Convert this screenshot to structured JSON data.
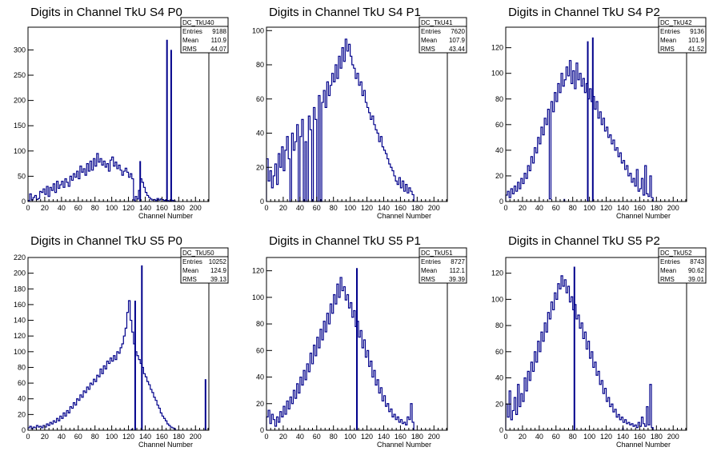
{
  "colors": {
    "histogram": "#00008b",
    "axis": "#000000",
    "background": "#ffffff"
  },
  "chart_data": [
    {
      "type": "bar",
      "title": "Digits in Channel TkU S4 P0",
      "xlabel": "Channel Number",
      "ylabel": "",
      "xlim": [
        0,
        216
      ],
      "ylim": [
        0,
        345
      ],
      "x_ticks": [
        0,
        20,
        40,
        60,
        80,
        100,
        120,
        140,
        160,
        180,
        200
      ],
      "y_ticks": [
        0,
        50,
        100,
        150,
        200,
        250,
        300
      ],
      "stats": {
        "name": "DC_TkU40",
        "entries_label": "Entries",
        "entries": "9188",
        "mean_label": "Mean",
        "mean": "110.9",
        "rms_label": "RMS",
        "rms": "44.07"
      },
      "bin_width": 2,
      "values": [
        2,
        15,
        3,
        8,
        12,
        4,
        6,
        20,
        18,
        25,
        14,
        30,
        10,
        28,
        22,
        35,
        18,
        40,
        26,
        33,
        40,
        28,
        45,
        38,
        30,
        50,
        42,
        55,
        48,
        60,
        45,
        70,
        58,
        65,
        52,
        75,
        60,
        80,
        62,
        85,
        70,
        95,
        78,
        85,
        72,
        80,
        68,
        75,
        60,
        82,
        88,
        70,
        78,
        65,
        72,
        62,
        52,
        60,
        66,
        58,
        48,
        55,
        45,
        3,
        10,
        5,
        22,
        45,
        38,
        28,
        18,
        12,
        8,
        5,
        3,
        4,
        2,
        6,
        3,
        5,
        4,
        2,
        3,
        2,
        1,
        3,
        2,
        1
      ],
      "spikes": [
        [
          128,
          2
        ],
        [
          134,
          80
        ],
        [
          166,
          320
        ],
        [
          171,
          300
        ]
      ]
    },
    {
      "type": "bar",
      "title": "Digits in Channel TkU S4 P1",
      "xlabel": "Channel Number",
      "ylabel": "",
      "xlim": [
        0,
        216
      ],
      "ylim": [
        0,
        102
      ],
      "x_ticks": [
        0,
        20,
        40,
        60,
        80,
        100,
        120,
        140,
        160,
        180,
        200
      ],
      "y_ticks": [
        0,
        20,
        40,
        60,
        80,
        100
      ],
      "stats": {
        "name": "DC_TkU41",
        "entries_label": "Entries",
        "entries": "7620",
        "mean_label": "Mean",
        "mean": "107.9",
        "rms_label": "RMS",
        "rms": "43.44"
      },
      "bin_width": 2,
      "values": [
        25,
        12,
        18,
        8,
        15,
        22,
        10,
        28,
        20,
        32,
        18,
        30,
        38,
        25,
        0,
        40,
        30,
        35,
        45,
        0,
        38,
        48,
        0,
        35,
        0,
        50,
        42,
        0,
        55,
        48,
        0,
        62,
        0,
        58,
        65,
        55,
        70,
        62,
        68,
        75,
        70,
        80,
        72,
        85,
        78,
        90,
        82,
        95,
        88,
        92,
        85,
        80,
        78,
        72,
        75,
        68,
        70,
        62,
        65,
        58,
        55,
        52,
        48,
        50,
        45,
        42,
        40,
        35,
        38,
        32,
        30,
        28,
        25,
        22,
        20,
        18,
        15,
        12,
        10,
        14,
        8,
        12,
        6,
        10,
        5,
        8,
        6,
        4
      ],
      "spikes": [
        [
          72,
          0
        ],
        [
          58,
          0
        ]
      ]
    },
    {
      "type": "bar",
      "title": "Digits in Channel TkU S4 P2",
      "xlabel": "Channel Number",
      "ylabel": "",
      "xlim": [
        0,
        216
      ],
      "ylim": [
        0,
        136
      ],
      "x_ticks": [
        0,
        20,
        40,
        60,
        80,
        100,
        120,
        140,
        160,
        180,
        200
      ],
      "y_ticks": [
        0,
        20,
        40,
        60,
        80,
        100,
        120
      ],
      "stats": {
        "name": "DC_TkU42",
        "entries_label": "Entries",
        "entries": "9136",
        "mean_label": "Mean",
        "mean": "101.9",
        "rms_label": "RMS",
        "rms": "41.52"
      },
      "bin_width": 2,
      "values": [
        5,
        8,
        3,
        10,
        6,
        12,
        8,
        15,
        10,
        18,
        14,
        22,
        18,
        28,
        24,
        35,
        30,
        42,
        38,
        50,
        45,
        58,
        52,
        65,
        60,
        72,
        2,
        78,
        70,
        85,
        78,
        92,
        85,
        100,
        90,
        95,
        105,
        98,
        110,
        92,
        102,
        88,
        108,
        95,
        100,
        90,
        96,
        85,
        92,
        80,
        88,
        78,
        82,
        72,
        78,
        65,
        70,
        60,
        65,
        55,
        58,
        50,
        52,
        45,
        48,
        40,
        42,
        35,
        38,
        30,
        32,
        25,
        28,
        20,
        22,
        15,
        18,
        12,
        25,
        8,
        10,
        18,
        5,
        28,
        6,
        4,
        20,
        3
      ],
      "spikes": [
        [
          70,
          2
        ],
        [
          104,
          128
        ],
        [
          98,
          125
        ]
      ]
    },
    {
      "type": "bar",
      "title": "Digits in Channel TkU S5 P0",
      "xlabel": "Channel Number",
      "ylabel": "",
      "xlim": [
        0,
        216
      ],
      "ylim": [
        0,
        220
      ],
      "x_ticks": [
        0,
        20,
        40,
        60,
        80,
        100,
        120,
        140,
        160,
        180,
        200
      ],
      "y_ticks": [
        0,
        20,
        40,
        60,
        80,
        100,
        120,
        140,
        160,
        180,
        200,
        220
      ],
      "stats": {
        "name": "DC_TkU50",
        "entries_label": "Entries",
        "entries": "10252",
        "mean_label": "Mean",
        "mean": "124.9",
        "rms_label": "RMS",
        "rms": "39.13"
      },
      "bin_width": 2,
      "values": [
        3,
        5,
        2,
        4,
        3,
        6,
        4,
        5,
        3,
        6,
        4,
        8,
        6,
        10,
        8,
        12,
        10,
        15,
        12,
        18,
        15,
        22,
        18,
        25,
        22,
        30,
        28,
        35,
        32,
        40,
        38,
        45,
        42,
        50,
        48,
        55,
        52,
        60,
        58,
        65,
        62,
        70,
        68,
        78,
        72,
        82,
        78,
        88,
        85,
        92,
        88,
        95,
        90,
        100,
        98,
        105,
        110,
        120,
        130,
        150,
        165,
        140,
        125,
        110,
        100,
        95,
        90,
        85,
        80,
        72,
        68,
        62,
        58,
        52,
        48,
        42,
        38,
        32,
        28,
        22,
        18,
        15,
        12,
        8,
        6,
        4,
        3,
        2
      ],
      "spikes": [
        [
          124,
          2
        ],
        [
          136,
          210
        ],
        [
          128,
          165
        ],
        [
          212,
          65
        ]
      ]
    },
    {
      "type": "bar",
      "title": "Digits in Channel TkU S5 P1",
      "xlabel": "Channel Number",
      "ylabel": "",
      "xlim": [
        0,
        216
      ],
      "ylim": [
        0,
        130
      ],
      "x_ticks": [
        0,
        20,
        40,
        60,
        80,
        100,
        120,
        140,
        160,
        180,
        200
      ],
      "y_ticks": [
        0,
        20,
        40,
        60,
        80,
        100,
        120
      ],
      "stats": {
        "name": "DC_TkU51",
        "entries_label": "Entries",
        "entries": "8727",
        "mean_label": "Mean",
        "mean": "112.1",
        "rms_label": "RMS",
        "rms": "39.39"
      },
      "bin_width": 2,
      "values": [
        10,
        15,
        5,
        12,
        8,
        3,
        10,
        6,
        14,
        10,
        18,
        12,
        22,
        16,
        25,
        20,
        30,
        24,
        35,
        28,
        40,
        34,
        45,
        38,
        50,
        44,
        58,
        50,
        64,
        56,
        70,
        62,
        76,
        68,
        82,
        74,
        88,
        80,
        95,
        88,
        102,
        95,
        110,
        100,
        115,
        105,
        108,
        98,
        102,
        92,
        96,
        85,
        90,
        78,
        82,
        70,
        75,
        62,
        68,
        55,
        60,
        48,
        52,
        40,
        45,
        34,
        38,
        28,
        32,
        22,
        26,
        18,
        20,
        14,
        16,
        10,
        12,
        8,
        10,
        6,
        8,
        5,
        6,
        4,
        10,
        8,
        20,
        6
      ],
      "spikes": [
        [
          108,
          122
        ]
      ]
    },
    {
      "type": "bar",
      "title": "Digits in Channel TkU S5 P2",
      "xlabel": "Channel Number",
      "ylabel": "",
      "xlim": [
        0,
        216
      ],
      "ylim": [
        0,
        132
      ],
      "x_ticks": [
        0,
        20,
        40,
        60,
        80,
        100,
        120,
        140,
        160,
        180,
        200
      ],
      "y_ticks": [
        0,
        20,
        40,
        60,
        80,
        100,
        120
      ],
      "stats": {
        "name": "DC_TkU52",
        "entries_label": "Entries",
        "entries": "8743",
        "mean_label": "Mean",
        "mean": "90.62",
        "rms_label": "RMS",
        "rms": "39.01"
      },
      "bin_width": 2,
      "values": [
        20,
        10,
        30,
        8,
        15,
        25,
        12,
        35,
        18,
        28,
        22,
        40,
        30,
        45,
        38,
        52,
        45,
        60,
        52,
        68,
        60,
        75,
        68,
        82,
        75,
        90,
        85,
        98,
        92,
        105,
        100,
        112,
        108,
        118,
        110,
        115,
        105,
        110,
        98,
        102,
        92,
        96,
        85,
        88,
        78,
        82,
        70,
        75,
        62,
        68,
        55,
        60,
        48,
        52,
        42,
        45,
        35,
        38,
        28,
        32,
        22,
        25,
        18,
        20,
        14,
        16,
        10,
        12,
        8,
        10,
        6,
        8,
        5,
        6,
        4,
        5,
        3,
        4,
        2,
        6,
        3,
        10,
        5,
        3,
        18,
        4,
        35,
        2
      ],
      "spikes": [
        [
          82,
          125
        ],
        [
          140,
          2
        ]
      ]
    }
  ]
}
